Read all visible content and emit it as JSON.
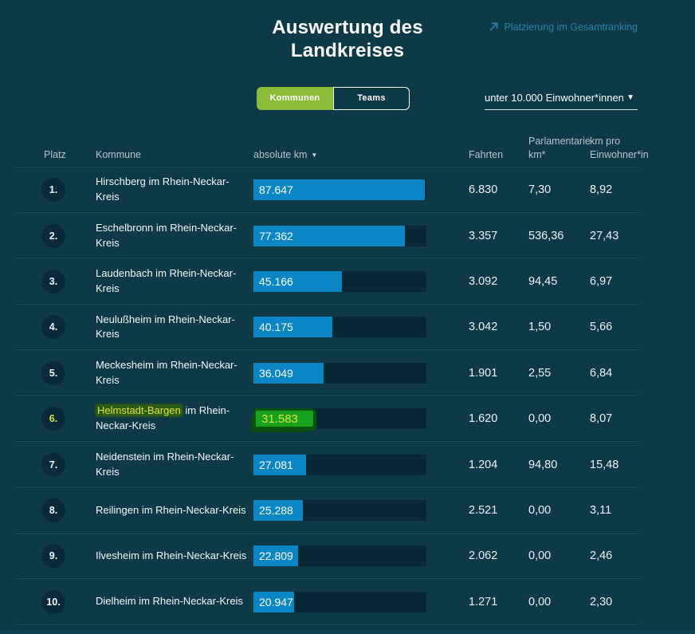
{
  "header": {
    "title": "Auswertung des\nLandkreises",
    "ranking_link_label": "Platzierung im Gesamtranking"
  },
  "controls": {
    "view_toggle": [
      {
        "label": "Kommunen",
        "active": true
      },
      {
        "label": "Teams",
        "active": false
      }
    ],
    "population_filter": {
      "value": "unter 10.000 Einwohner*innen",
      "caret_icon": "caret-down"
    }
  },
  "table": {
    "columns": {
      "platz": "Platz",
      "kommune": "Kommune",
      "absolute_km": "absolute km",
      "fahrten": "Fahrten",
      "parlamentarier_top": "Parlamentarie",
      "parlamentarier_km": "km*",
      "km_pro_top": "km pro",
      "km_pro_einwohner": "Einwohner*in"
    },
    "sort": {
      "column": "absolute km",
      "direction": "desc"
    },
    "bar_max": 88400,
    "rows": [
      {
        "rank": "1.",
        "name": "Hirschberg im Rhein-Neckar-Kreis",
        "km_display": "87.647",
        "km_value": 87647,
        "fahrten": "6.830",
        "parlamentarier_km": "7,30",
        "km_pro_einwohner": "8,92"
      },
      {
        "rank": "2.",
        "name": "Eschelbronn im Rhein-Neckar-Kreis",
        "km_display": "77.362",
        "km_value": 77362,
        "fahrten": "3.357",
        "parlamentarier_km": "536,36",
        "km_pro_einwohner": "27,43"
      },
      {
        "rank": "3.",
        "name": "Laudenbach im Rhein-Neckar-Kreis",
        "km_display": "45.166",
        "km_value": 45166,
        "fahrten": "3.092",
        "parlamentarier_km": "94,45",
        "km_pro_einwohner": "6,97"
      },
      {
        "rank": "4.",
        "name": "Neulußheim im Rhein-Neckar-Kreis",
        "km_display": "40.175",
        "km_value": 40175,
        "fahrten": "3.042",
        "parlamentarier_km": "1,50",
        "km_pro_einwohner": "5,66"
      },
      {
        "rank": "5.",
        "name": "Meckesheim im Rhein-Neckar-Kreis",
        "km_display": "36.049",
        "km_value": 36049,
        "fahrten": "1.901",
        "parlamentarier_km": "2,55",
        "km_pro_einwohner": "6,84"
      },
      {
        "rank": "6.",
        "name": "Helmstadt-Bargen im Rhein-Neckar-Kreis",
        "km_display": "31.583",
        "km_value": 31583,
        "fahrten": "1.620",
        "parlamentarier_km": "0,00",
        "km_pro_einwohner": "8,07",
        "highlight": true,
        "highlight_part": "Helmstadt-Bargen"
      },
      {
        "rank": "7.",
        "name": "Neidenstein im Rhein-Neckar-Kreis",
        "km_display": "27.081",
        "km_value": 27081,
        "fahrten": "1.204",
        "parlamentarier_km": "94,80",
        "km_pro_einwohner": "15,48"
      },
      {
        "rank": "8.",
        "name": "Reilingen im Rhein-Neckar-Kreis",
        "km_display": "25.288",
        "km_value": 25288,
        "fahrten": "2.521",
        "parlamentarier_km": "0,00",
        "km_pro_einwohner": "3,11"
      },
      {
        "rank": "9.",
        "name": "Ilvesheim im Rhein-Neckar-Kreis",
        "km_display": "22.809",
        "km_value": 22809,
        "fahrten": "2.062",
        "parlamentarier_km": "0,00",
        "km_pro_einwohner": "2,46"
      },
      {
        "rank": "10.",
        "name": "Dielheim im Rhein-Neckar-Kreis",
        "km_display": "20.947",
        "km_value": 20947,
        "fahrten": "1.271",
        "parlamentarier_km": "0,00",
        "km_pro_einwohner": "2,30"
      }
    ]
  },
  "theme": {
    "background": "#0e3947",
    "bar_track": "#092836",
    "bar_blue": "#0a86c4",
    "accent_green": "#8abc3a",
    "link_blue": "#2e81ab",
    "divider": "#1d4f60",
    "highlight_green_fill": "#16a21d",
    "highlight_green_border": "#0c5211",
    "highlight_yellow": "#dde23a"
  }
}
